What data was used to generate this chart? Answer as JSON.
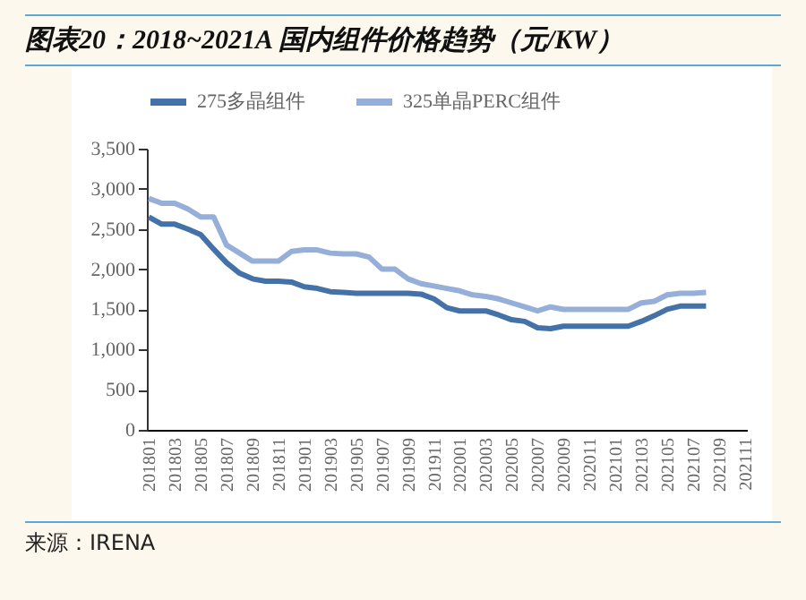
{
  "chart_data": {
    "type": "line",
    "title": "图表20：2018~2021A 国内组件价格趋势（元/KW）",
    "categories": [
      "201801",
      null,
      "201803",
      null,
      "201805",
      null,
      "201807",
      null,
      "201809",
      null,
      "201811",
      null,
      "201901",
      null,
      "201903",
      null,
      "201905",
      null,
      "201907",
      null,
      "201909",
      null,
      "201911",
      null,
      "202001",
      null,
      "202003",
      null,
      "202005",
      null,
      "202007",
      null,
      "202009",
      null,
      "202011",
      null,
      "202101",
      null,
      "202103",
      null,
      "202105",
      null,
      "202107",
      null,
      "202109",
      null,
      "202111"
    ],
    "series": [
      {
        "name": "275多晶组件",
        "color": "#4472a8",
        "values": [
          2650,
          2560,
          2560,
          2500,
          2430,
          2250,
          2080,
          1950,
          1880,
          1850,
          1850,
          1840,
          1780,
          1760,
          1720,
          1710,
          1700,
          1700,
          1700,
          1700,
          1700,
          1690,
          1630,
          1520,
          1480,
          1480,
          1480,
          1430,
          1370,
          1350,
          1270,
          1260,
          1290,
          1290,
          1290,
          1290,
          1290,
          1290,
          1350,
          1420,
          1500,
          1540,
          1540,
          1540,
          null,
          null,
          null
        ]
      },
      {
        "name": "325单晶PERC组件",
        "color": "#95afd9",
        "values": [
          2880,
          2820,
          2820,
          2750,
          2650,
          2650,
          2300,
          2200,
          2100,
          2100,
          2100,
          2220,
          2240,
          2240,
          2200,
          2190,
          2190,
          2150,
          2000,
          2000,
          1880,
          1820,
          1790,
          1760,
          1730,
          1680,
          1660,
          1630,
          1580,
          1530,
          1480,
          1530,
          1500,
          1500,
          1500,
          1500,
          1500,
          1500,
          1580,
          1600,
          1680,
          1700,
          1700,
          1710,
          null,
          null,
          null
        ]
      }
    ],
    "ylim": [
      0,
      3500
    ],
    "yticks": [
      0,
      500,
      {
        "value": 1000,
        "label": "1,000"
      },
      {
        "value": 1500,
        "label": "1,500"
      },
      {
        "value": 2000,
        "label": "2,000"
      },
      {
        "value": 2500,
        "label": "2,500"
      },
      {
        "value": 3000,
        "label": "3,000"
      },
      {
        "value": 3500,
        "label": "3,500"
      }
    ],
    "legend": "top",
    "grid": false,
    "annotations": [
      "来源：IRENA"
    ]
  }
}
